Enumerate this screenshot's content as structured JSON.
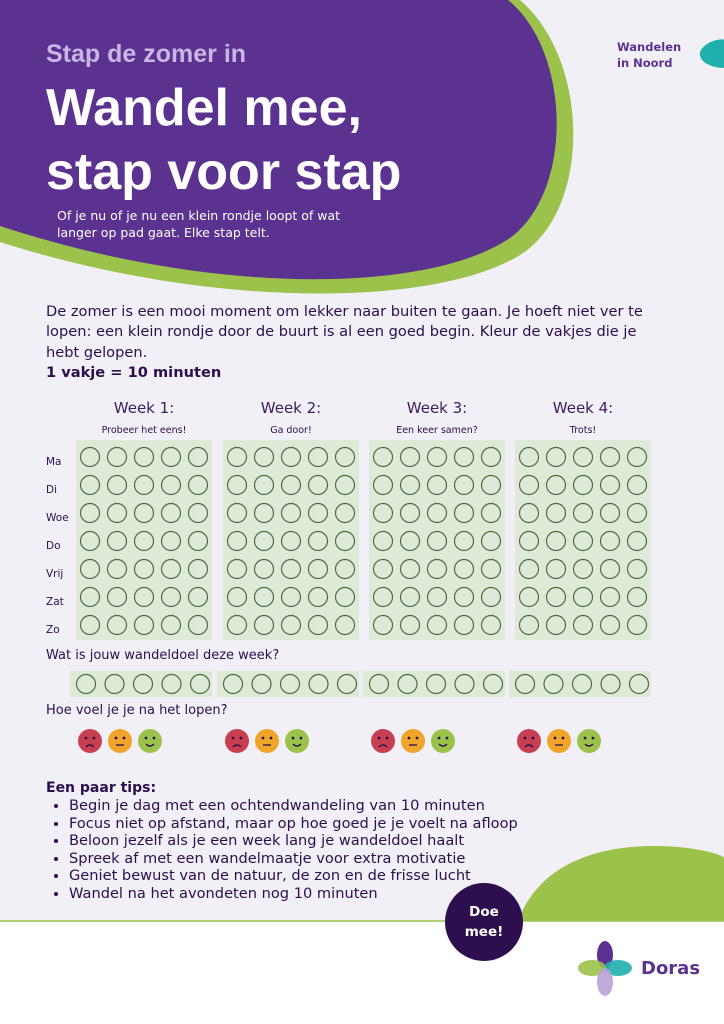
{
  "header": {
    "kicker": "Stap de zomer in",
    "title_lines": [
      "Wandel mee,",
      "stap voor stap"
    ],
    "intro": "Of je nu of je nu een klein rondje loopt of wat langer op pad gaat. Elke stap telt."
  },
  "corner_label": "Wandelen in Noord",
  "intro": {
    "text": "De zomer is een mooi moment om lekker naar buiten te gaan. Je hoeft niet ver te lopen: een klein rondje door de buurt is al een goed begin. Kleur de vakjes die je hebt gelopen.",
    "rule": "1 vakje = 10 minuten"
  },
  "tracker": {
    "weeks": [
      {
        "label": "Week 1:",
        "motto": "Probeer het eens!"
      },
      {
        "label": "Week 2:",
        "motto": "Ga door!"
      },
      {
        "label": "Week 3:",
        "motto": "Een keer samen?"
      },
      {
        "label": "Week 4:",
        "motto": "Trots!"
      }
    ],
    "days": [
      "Ma",
      "Di",
      "Woe",
      "Do",
      "Vrij",
      "Zat",
      "Zo"
    ]
  },
  "goal_question": "Wat is jouw wandeldoel deze week?",
  "feeling_question": "Hoe voel je je na het lopen?",
  "tips": {
    "title": "Een paar tips:",
    "items": [
      "Begin je dag met een ochtendwandeling van 10 minuten",
      "Focus niet op afstand, maar op hoe goed je je voelt na afloop",
      "Beloon jezelf als je een week lang je wandeldoel haalt",
      "Spreek af met een wandelmaatje voor extra motivatie",
      "Geniet bewust van de natuur, de zon en de frisse lucht",
      "Wandel na het avondeten nog 10 minuten"
    ]
  },
  "cta": "Doe mee!",
  "logo": "Doras"
}
